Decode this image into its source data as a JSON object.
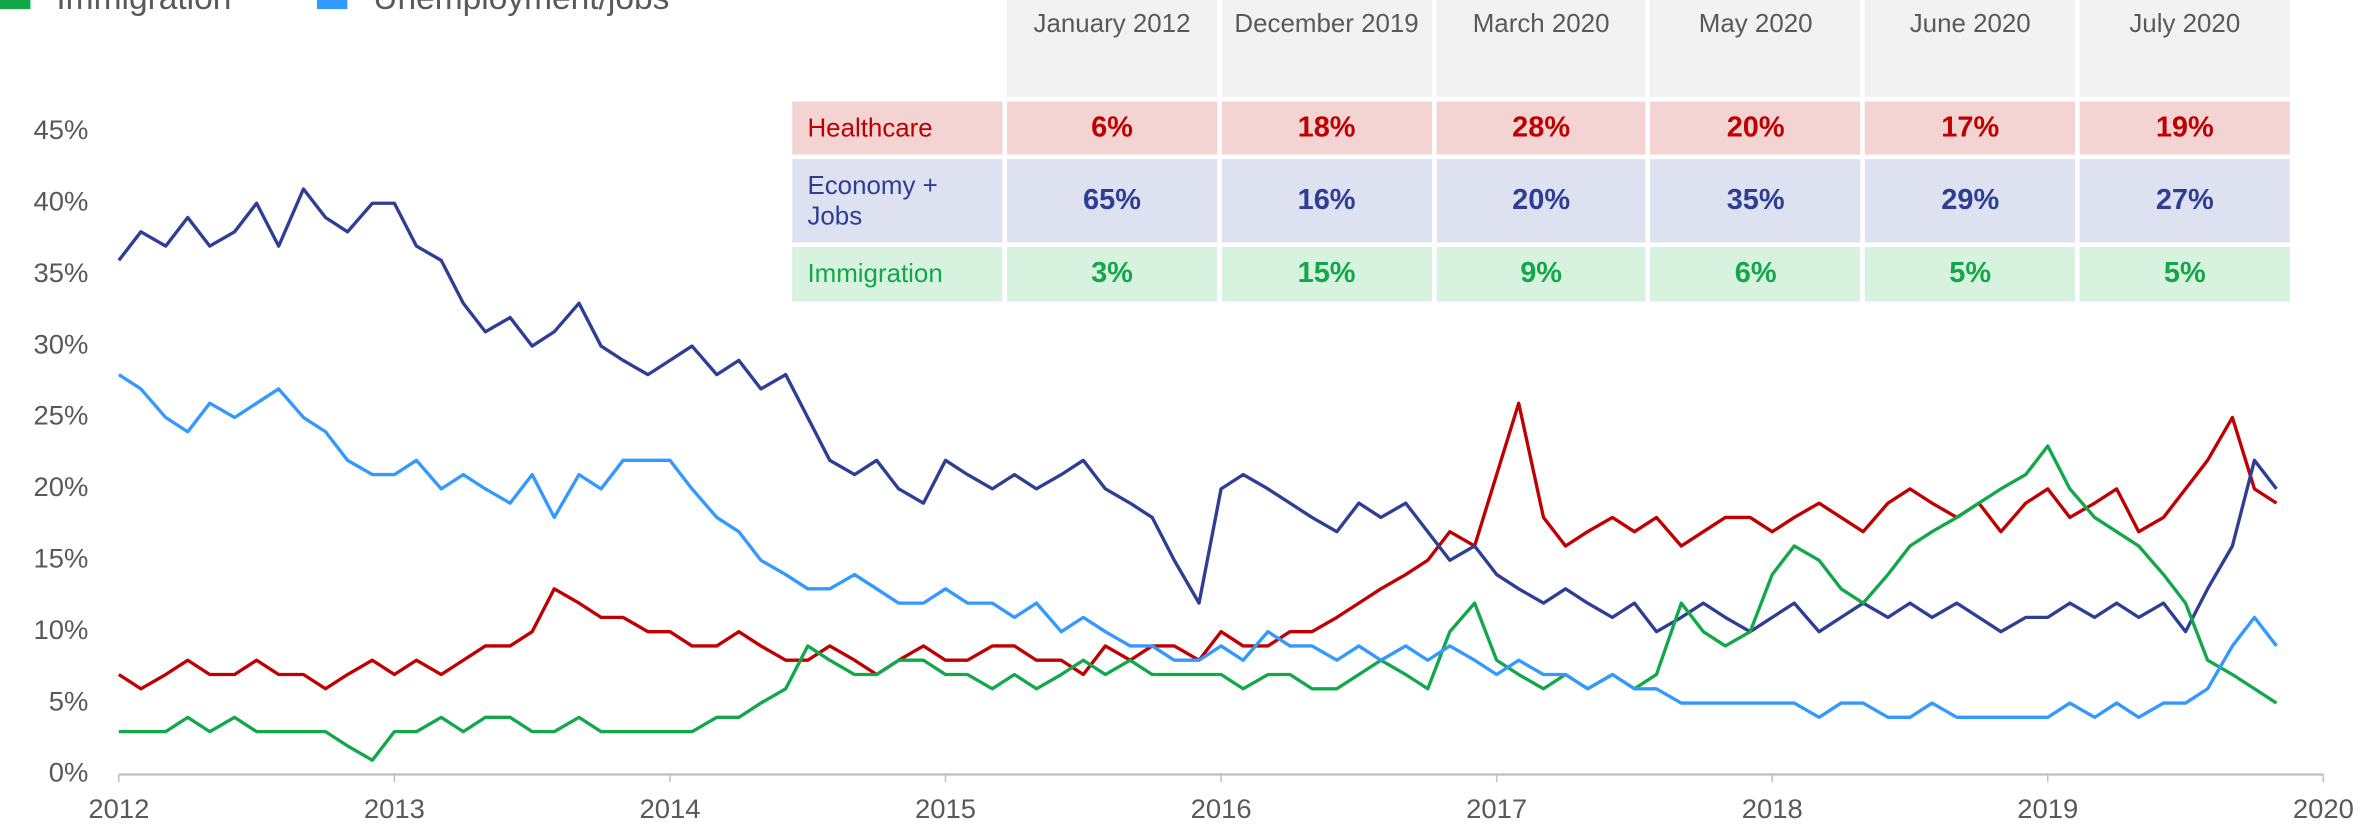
{
  "chart_data": {
    "type": "line",
    "x": [
      2012,
      2012.08,
      2012.17,
      2012.25,
      2012.33,
      2012.42,
      2012.5,
      2012.58,
      2012.67,
      2012.75,
      2012.83,
      2012.92,
      2013,
      2013.08,
      2013.17,
      2013.25,
      2013.33,
      2013.42,
      2013.5,
      2013.58,
      2013.67,
      2013.75,
      2013.83,
      2013.92,
      2014,
      2014.08,
      2014.17,
      2014.25,
      2014.33,
      2014.42,
      2014.5,
      2014.58,
      2014.67,
      2014.75,
      2014.83,
      2014.92,
      2015,
      2015.08,
      2015.17,
      2015.25,
      2015.33,
      2015.42,
      2015.5,
      2015.58,
      2015.67,
      2015.75,
      2015.83,
      2015.92,
      2016,
      2016.08,
      2016.17,
      2016.25,
      2016.33,
      2016.42,
      2016.5,
      2016.58,
      2016.67,
      2016.75,
      2016.83,
      2016.92,
      2017,
      2017.08,
      2017.17,
      2017.25,
      2017.33,
      2017.42,
      2017.5,
      2017.58,
      2017.67,
      2017.75,
      2017.83,
      2017.92,
      2018,
      2018.08,
      2018.17,
      2018.25,
      2018.33,
      2018.42,
      2018.5,
      2018.58,
      2018.67,
      2018.75,
      2018.83,
      2018.92,
      2019,
      2019.08,
      2019.17,
      2019.25,
      2019.33,
      2019.42,
      2019.5,
      2019.58,
      2019.67,
      2019.75,
      2019.83
    ],
    "series": [
      {
        "color": "#c00000",
        "values": [
          7,
          6,
          7,
          8,
          7,
          7,
          8,
          7,
          7,
          6,
          7,
          8,
          7,
          8,
          7,
          8,
          9,
          9,
          10,
          13,
          12,
          11,
          11,
          10,
          10,
          9,
          9,
          10,
          9,
          8,
          8,
          9,
          8,
          7,
          8,
          9,
          8,
          8,
          9,
          9,
          8,
          8,
          7,
          9,
          8,
          9,
          9,
          8,
          10,
          9,
          9,
          10,
          10,
          11,
          12,
          13,
          14,
          15,
          17,
          16,
          21,
          26,
          18,
          16,
          17,
          18,
          17,
          18,
          16,
          17,
          18,
          18,
          17,
          18,
          19,
          18,
          17,
          19,
          20,
          19,
          18,
          19,
          17,
          19,
          20,
          18,
          19,
          20,
          17,
          18,
          20,
          22,
          25,
          20,
          19
        ]
      },
      {
        "color": "#2e3e94",
        "values": [
          36,
          38,
          37,
          39,
          37,
          38,
          40,
          37,
          41,
          39,
          38,
          40,
          40,
          37,
          36,
          33,
          31,
          32,
          30,
          31,
          33,
          30,
          29,
          28,
          29,
          30,
          28,
          29,
          27,
          28,
          25,
          22,
          21,
          22,
          20,
          19,
          22,
          21,
          20,
          21,
          20,
          21,
          22,
          20,
          19,
          18,
          15,
          12,
          20,
          21,
          20,
          19,
          18,
          17,
          19,
          18,
          19,
          17,
          15,
          16,
          14,
          13,
          12,
          13,
          12,
          11,
          12,
          10,
          11,
          12,
          11,
          10,
          11,
          12,
          10,
          11,
          12,
          11,
          12,
          11,
          12,
          11,
          10,
          11,
          11,
          12,
          11,
          12,
          11,
          12,
          10,
          13,
          16,
          22,
          20
        ]
      },
      {
        "name": "Immigration",
        "color": "#12a84a",
        "values": [
          3,
          3,
          3,
          4,
          3,
          4,
          3,
          3,
          3,
          3,
          2,
          1,
          3,
          3,
          4,
          3,
          4,
          4,
          3,
          3,
          4,
          3,
          3,
          3,
          3,
          3,
          4,
          4,
          5,
          6,
          9,
          8,
          7,
          7,
          8,
          8,
          7,
          7,
          6,
          7,
          6,
          7,
          8,
          7,
          8,
          7,
          7,
          7,
          7,
          6,
          7,
          7,
          6,
          6,
          7,
          8,
          7,
          6,
          10,
          12,
          8,
          7,
          6,
          7,
          6,
          7,
          6,
          7,
          12,
          10,
          9,
          10,
          14,
          16,
          15,
          13,
          12,
          14,
          16,
          17,
          18,
          19,
          20,
          21,
          23,
          20,
          18,
          17,
          16,
          14,
          12,
          8,
          7,
          6,
          5
        ]
      },
      {
        "name": "Unemployment/jobs",
        "color": "#3399ff",
        "values": [
          28,
          27,
          25,
          24,
          26,
          25,
          26,
          27,
          25,
          24,
          22,
          21,
          21,
          22,
          20,
          21,
          20,
          19,
          21,
          18,
          21,
          20,
          22,
          22,
          22,
          20,
          18,
          17,
          15,
          14,
          13,
          13,
          14,
          13,
          12,
          12,
          13,
          12,
          12,
          11,
          12,
          10,
          11,
          10,
          9,
          9,
          8,
          8,
          9,
          8,
          10,
          9,
          9,
          8,
          9,
          8,
          9,
          8,
          9,
          8,
          7,
          8,
          7,
          7,
          6,
          7,
          6,
          6,
          5,
          5,
          5,
          5,
          5,
          5,
          4,
          5,
          5,
          4,
          4,
          5,
          4,
          4,
          4,
          4,
          4,
          5,
          4,
          5,
          4,
          5,
          5,
          6,
          9,
          11,
          9
        ]
      }
    ],
    "xlim": [
      2012,
      2020
    ],
    "xticks": [
      2012,
      2013,
      2014,
      2015,
      2016,
      2017,
      2018,
      2019,
      2020
    ],
    "ylim": [
      0,
      45
    ],
    "yticks": [
      {
        "value": 0,
        "label": "0%"
      },
      {
        "value": 5,
        "label": "5%"
      },
      {
        "value": 10,
        "label": "10%"
      },
      {
        "value": 15,
        "label": "15%"
      },
      {
        "value": 20,
        "label": "20%"
      },
      {
        "value": 25,
        "label": "25%"
      },
      {
        "value": 30,
        "label": "30%"
      },
      {
        "value": 35,
        "label": "35%"
      },
      {
        "value": 40,
        "label": "40%"
      },
      {
        "value": 45,
        "label": "45%"
      }
    ],
    "grid": false
  },
  "table": {
    "columns": [
      "January 2012",
      "December 2019",
      "March 2020",
      "May 2020",
      "June 2020",
      "July 2020"
    ],
    "rows": [
      {
        "label": "Healthcare",
        "values": [
          "6%",
          "18%",
          "28%",
          "20%",
          "17%",
          "19%"
        ]
      },
      {
        "label": "Economy + Jobs",
        "values": [
          "65%",
          "16%",
          "20%",
          "35%",
          "29%",
          "27%"
        ]
      },
      {
        "label": "Immigration",
        "values": [
          "3%",
          "15%",
          "9%",
          "6%",
          "5%",
          "5%"
        ]
      }
    ]
  }
}
